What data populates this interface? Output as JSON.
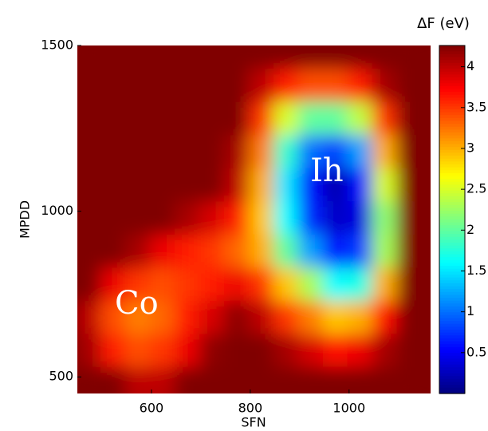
{
  "chart_data": {
    "type": "heatmap",
    "xlabel": "SFN",
    "ylabel": "MPDD",
    "colorbar_label": "ΔF (eV)",
    "xlim": [
      450,
      1165
    ],
    "ylim": [
      450,
      1500
    ],
    "zlim": [
      0,
      4.26
    ],
    "xticks": [
      600,
      800,
      1000
    ],
    "yticks": [
      500,
      1000,
      1500
    ],
    "colorbar_ticks": [
      0.5,
      1,
      1.5,
      2,
      2.5,
      3,
      3.5,
      4
    ],
    "colormap": "jet",
    "annotations": [
      {
        "text": "Ih",
        "x": 955,
        "y": 1115
      },
      {
        "text": "Co",
        "x": 570,
        "y": 715
      }
    ],
    "x": [
      475,
      525,
      575,
      625,
      675,
      725,
      775,
      825,
      875,
      925,
      975,
      1025,
      1075,
      1125
    ],
    "y": [
      1475,
      1375,
      1275,
      1175,
      1075,
      975,
      875,
      775,
      675,
      575,
      475
    ],
    "z": [
      [
        4.26,
        4.26,
        4.26,
        4.26,
        4.26,
        4.26,
        4.26,
        4.26,
        4.26,
        4.26,
        4.26,
        4.26,
        4.26,
        4.26
      ],
      [
        4.26,
        4.26,
        4.26,
        4.26,
        4.26,
        4.26,
        4.26,
        4.0,
        3.6,
        3.4,
        3.4,
        3.6,
        4.1,
        4.26
      ],
      [
        4.26,
        4.26,
        4.26,
        4.26,
        4.26,
        4.26,
        4.26,
        3.5,
        2.5,
        2.0,
        2.0,
        2.4,
        3.5,
        4.26
      ],
      [
        4.26,
        4.26,
        4.26,
        4.26,
        4.26,
        4.26,
        4.1,
        3.2,
        1.8,
        1.0,
        0.8,
        1.2,
        3.0,
        4.26
      ],
      [
        4.26,
        4.26,
        4.26,
        4.26,
        4.26,
        4.26,
        4.0,
        3.0,
        1.5,
        0.6,
        0.2,
        0.6,
        2.5,
        4.26
      ],
      [
        4.26,
        4.26,
        4.26,
        4.26,
        4.1,
        3.9,
        3.6,
        2.9,
        1.6,
        0.7,
        0.3,
        0.4,
        2.2,
        4.26
      ],
      [
        4.26,
        4.26,
        4.1,
        3.8,
        3.6,
        3.5,
        3.3,
        3.0,
        2.0,
        1.2,
        0.6,
        0.8,
        2.3,
        4.26
      ],
      [
        4.26,
        3.8,
        3.5,
        3.4,
        3.5,
        3.6,
        3.8,
        3.5,
        2.9,
        2.3,
        1.6,
        1.7,
        3.0,
        4.26
      ],
      [
        4.0,
        3.4,
        3.2,
        3.3,
        3.6,
        3.9,
        4.2,
        4.0,
        3.5,
        3.2,
        2.9,
        3.0,
        3.7,
        4.26
      ],
      [
        4.1,
        3.6,
        3.4,
        3.5,
        3.8,
        4.2,
        4.26,
        4.26,
        4.1,
        3.9,
        3.7,
        3.8,
        4.1,
        4.26
      ],
      [
        4.26,
        4.26,
        4.0,
        4.0,
        4.26,
        4.26,
        4.26,
        4.26,
        4.26,
        4.26,
        4.26,
        4.26,
        4.26,
        4.26
      ]
    ]
  }
}
